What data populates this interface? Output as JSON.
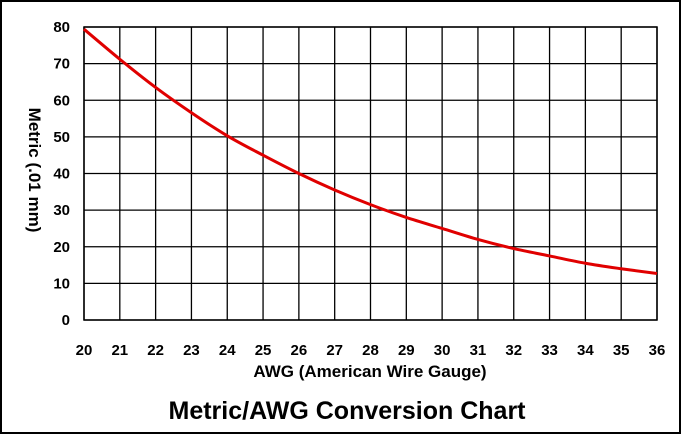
{
  "chart_data": {
    "type": "line",
    "title": "Metric/AWG Conversion Chart",
    "xlabel": "AWG (American Wire Gauge)",
    "ylabel": "Metric (.01 mm)",
    "xlim": [
      20,
      36
    ],
    "ylim": [
      0,
      80
    ],
    "x_ticks": [
      "20",
      "21",
      "22",
      "23",
      "24",
      "25",
      "26",
      "27",
      "28",
      "29",
      "30",
      "31",
      "32",
      "33",
      "34",
      "35",
      "36"
    ],
    "y_ticks": [
      "0",
      "10",
      "20",
      "30",
      "40",
      "50",
      "60",
      "70",
      "80"
    ],
    "grid": true,
    "legend": "none",
    "line_color": "#e00000",
    "series": [
      {
        "x": [
          20,
          21,
          22,
          23,
          24,
          25,
          26,
          27,
          28,
          29,
          30,
          31,
          32,
          33,
          34,
          35,
          36
        ],
        "values": [
          79.4,
          71.2,
          63.5,
          56.6,
          50.3,
          45.0,
          40.0,
          35.5,
          31.5,
          28.0,
          25.0,
          22.0,
          19.5,
          17.5,
          15.5,
          14.0,
          12.7
        ]
      }
    ]
  }
}
